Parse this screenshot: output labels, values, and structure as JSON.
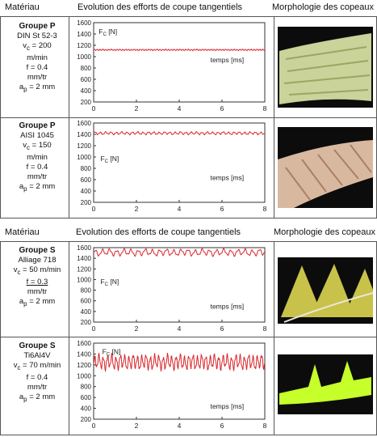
{
  "top_headers": {
    "material": "Matériau",
    "evolution": "Evolution des efforts de coupe tangentiels",
    "morphology": "Morphologie des copeaux"
  },
  "bottom_headers": {
    "material": "Matériau",
    "evolution": "Evolution des efforts de coupe tangentiels",
    "morphology": "Morphologie des copeaux"
  },
  "rows": [
    {
      "group": "Groupe P",
      "material": "DIN St 52-3",
      "vc": "200",
      "vc_unit": "m/min",
      "f": "0.4",
      "f_unit": "mm/tr",
      "ap": "2 mm",
      "fc_label": "[N]",
      "time_label": "temps [ms]"
    },
    {
      "group": "Groupe P",
      "material": "AISI 1045",
      "vc": "150",
      "vc_unit": "m/min",
      "f": "0.4",
      "f_unit": "mm/tr",
      "ap": "2 mm",
      "fc_label": "[N]",
      "time_label": "temps [ms]"
    },
    {
      "group": "Groupe S",
      "material": "Alliage 718",
      "vc": "50 m/min",
      "vc_unit": "",
      "f": "0.3",
      "f_unit": "mm/tr",
      "ap": "2 mm",
      "fc_label": "[N]",
      "time_label": "temps [ms]"
    },
    {
      "group": "Groupe S",
      "material": "Ti6Al4V",
      "vc": "70 m/min",
      "vc_unit": "",
      "f": "0.4",
      "f_unit": "mm/tr",
      "ap": "2 mm",
      "fc_label": "[N]",
      "time_label": "temps [ms]"
    }
  ],
  "colors": {
    "signal": "#d9262b",
    "photo_bg": "#0c0c0c",
    "chip_p1": "#c9d39a",
    "chip_p2": "#d9b8a0",
    "chip_s1": "#c8c24a",
    "chip_s2": "#c6ff2a"
  },
  "chart_data": [
    {
      "type": "line",
      "x": [
        0,
        2,
        4,
        6,
        8
      ],
      "xlim": [
        0,
        8
      ],
      "ylim": [
        200,
        1600
      ],
      "yticks": [
        200,
        400,
        600,
        800,
        1000,
        1200,
        1400,
        1600
      ],
      "xlabel": "temps [ms]",
      "ylabel": "Fc [N]",
      "series": [
        {
          "mean": 1120,
          "amplitude": 15,
          "cycles": 60
        }
      ]
    },
    {
      "type": "line",
      "x": [
        0,
        2,
        4,
        6,
        8
      ],
      "xlim": [
        0,
        8
      ],
      "ylim": [
        200,
        1600
      ],
      "yticks": [
        200,
        400,
        600,
        800,
        1000,
        1200,
        1400,
        1600
      ],
      "xlabel": "temps [ms]",
      "ylabel": "Fc [N]",
      "series": [
        {
          "mean": 1420,
          "amplitude": 30,
          "cycles": 32
        }
      ]
    },
    {
      "type": "line",
      "x": [
        0,
        2,
        4,
        6,
        8
      ],
      "xlim": [
        0,
        8
      ],
      "ylim": [
        200,
        1600
      ],
      "yticks": [
        200,
        400,
        600,
        800,
        1000,
        1200,
        1400,
        1600
      ],
      "xlabel": "temps [ms]",
      "ylabel": "Fc [N]",
      "series": [
        {
          "mean": 1510,
          "amplitude": 75,
          "cycles": 24
        }
      ]
    },
    {
      "type": "line",
      "x": [
        0,
        2,
        4,
        6,
        8
      ],
      "xlim": [
        0,
        8
      ],
      "ylim": [
        200,
        1600
      ],
      "yticks": [
        200,
        400,
        600,
        800,
        1000,
        1200,
        1400,
        1600
      ],
      "xlabel": "temps [ms]",
      "ylabel": "Fc [N]",
      "series": [
        {
          "mean": 1250,
          "amplitude": 170,
          "cycles": 40
        }
      ]
    }
  ]
}
